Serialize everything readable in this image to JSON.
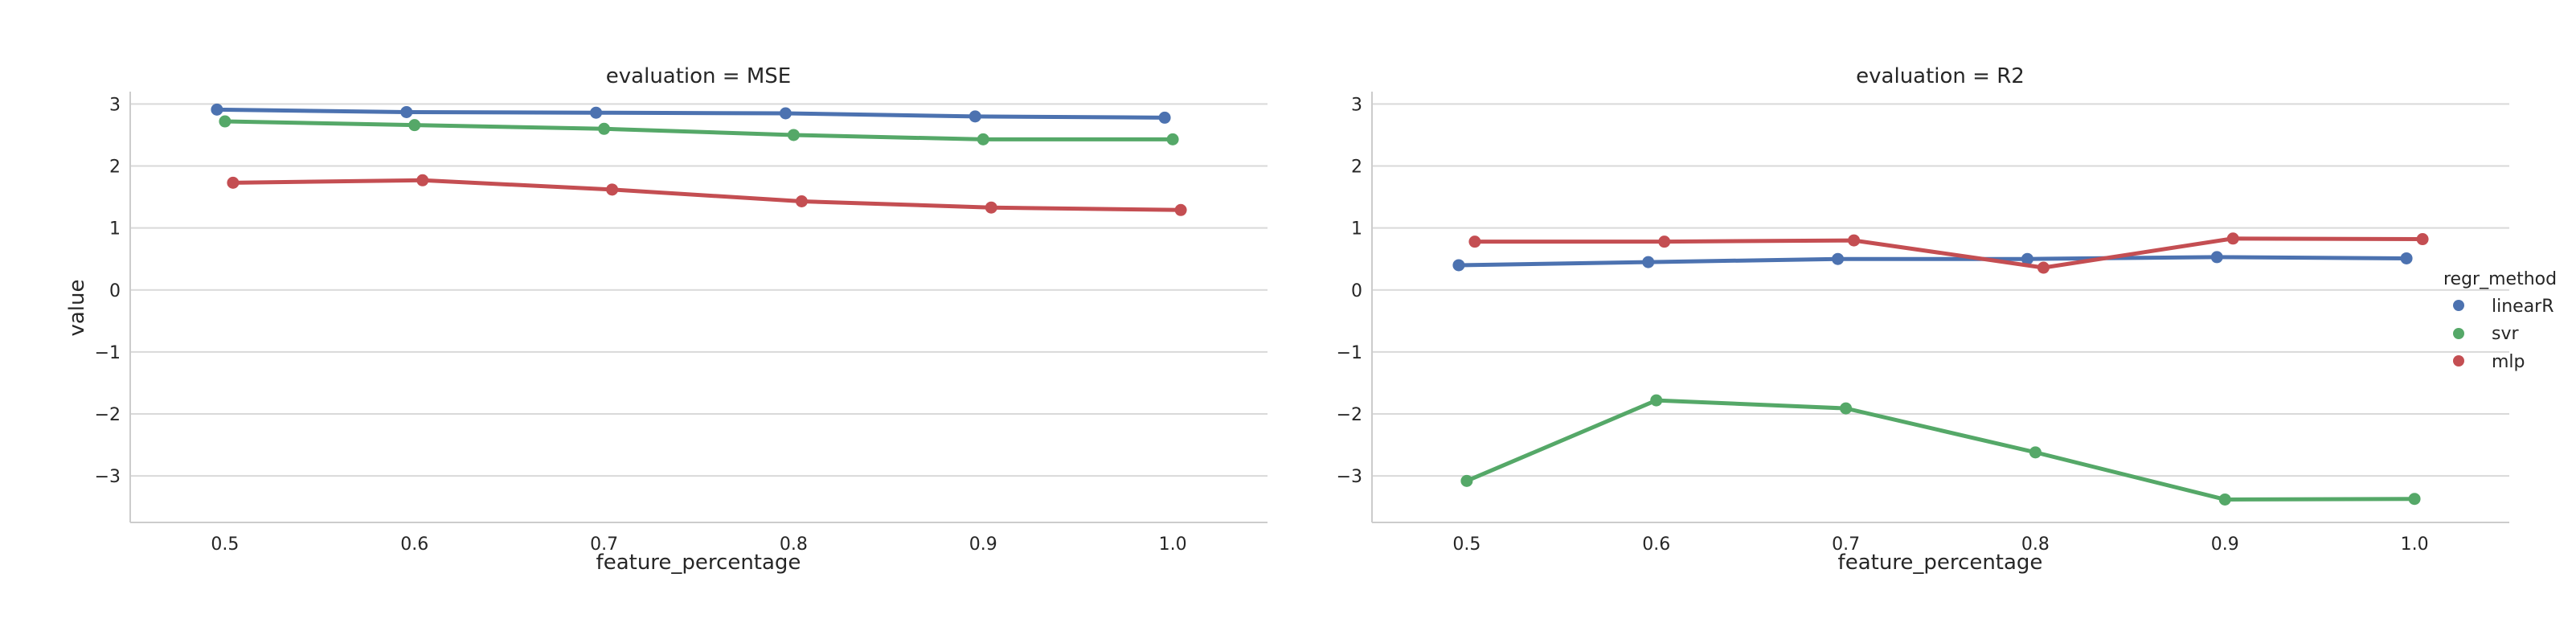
{
  "chart_data": [
    {
      "type": "line",
      "title": "evaluation = MSE",
      "xlabel": "feature_percentage",
      "ylabel": "value",
      "x": [
        0.5,
        0.6,
        0.7,
        0.8,
        0.9,
        1.0
      ],
      "x_tick_labels": [
        "0.5",
        "0.6",
        "0.7",
        "0.8",
        "0.9",
        "1.0"
      ],
      "y_ticks": [
        3,
        2,
        1,
        0,
        -1,
        -2,
        -3
      ],
      "y_tick_labels": [
        "3",
        "2",
        "1",
        "0",
        "−1",
        "−2",
        "−3"
      ],
      "xlim": [
        0.45,
        1.05
      ],
      "ylim": [
        -3.75,
        3.2
      ],
      "grid": "horizontal",
      "series": [
        {
          "name": "linearR",
          "color": "#4c72b0",
          "values": [
            2.91,
            2.87,
            2.86,
            2.85,
            2.8,
            2.78
          ]
        },
        {
          "name": "svr",
          "color": "#55a868",
          "values": [
            2.72,
            2.66,
            2.6,
            2.5,
            2.43,
            2.43
          ]
        },
        {
          "name": "mlp",
          "color": "#c44e52",
          "values": [
            1.73,
            1.77,
            1.62,
            1.43,
            1.33,
            1.29
          ]
        }
      ]
    },
    {
      "type": "line",
      "title": "evaluation = R2",
      "xlabel": "feature_percentage",
      "ylabel": "",
      "x": [
        0.5,
        0.6,
        0.7,
        0.8,
        0.9,
        1.0
      ],
      "x_tick_labels": [
        "0.5",
        "0.6",
        "0.7",
        "0.8",
        "0.9",
        "1.0"
      ],
      "y_ticks": [
        3,
        2,
        1,
        0,
        -1,
        -2,
        -3
      ],
      "y_tick_labels": [
        "3",
        "2",
        "1",
        "0",
        "−1",
        "−2",
        "−3"
      ],
      "xlim": [
        0.45,
        1.05
      ],
      "ylim": [
        -3.75,
        3.2
      ],
      "grid": "horizontal",
      "series": [
        {
          "name": "linearR",
          "color": "#4c72b0",
          "values": [
            0.4,
            0.45,
            0.5,
            0.5,
            0.53,
            0.51
          ]
        },
        {
          "name": "svr",
          "color": "#55a868",
          "values": [
            -3.08,
            -1.78,
            -1.91,
            -2.62,
            -3.38,
            -3.37
          ]
        },
        {
          "name": "mlp",
          "color": "#c44e52",
          "values": [
            0.78,
            0.78,
            0.8,
            0.36,
            0.83,
            0.82
          ]
        }
      ]
    }
  ],
  "legend": {
    "title": "regr_method",
    "placement": "right",
    "items": [
      {
        "label": "linearR",
        "color": "#4c72b0"
      },
      {
        "label": "svr",
        "color": "#55a868"
      },
      {
        "label": "mlp",
        "color": "#c44e52"
      }
    ]
  }
}
